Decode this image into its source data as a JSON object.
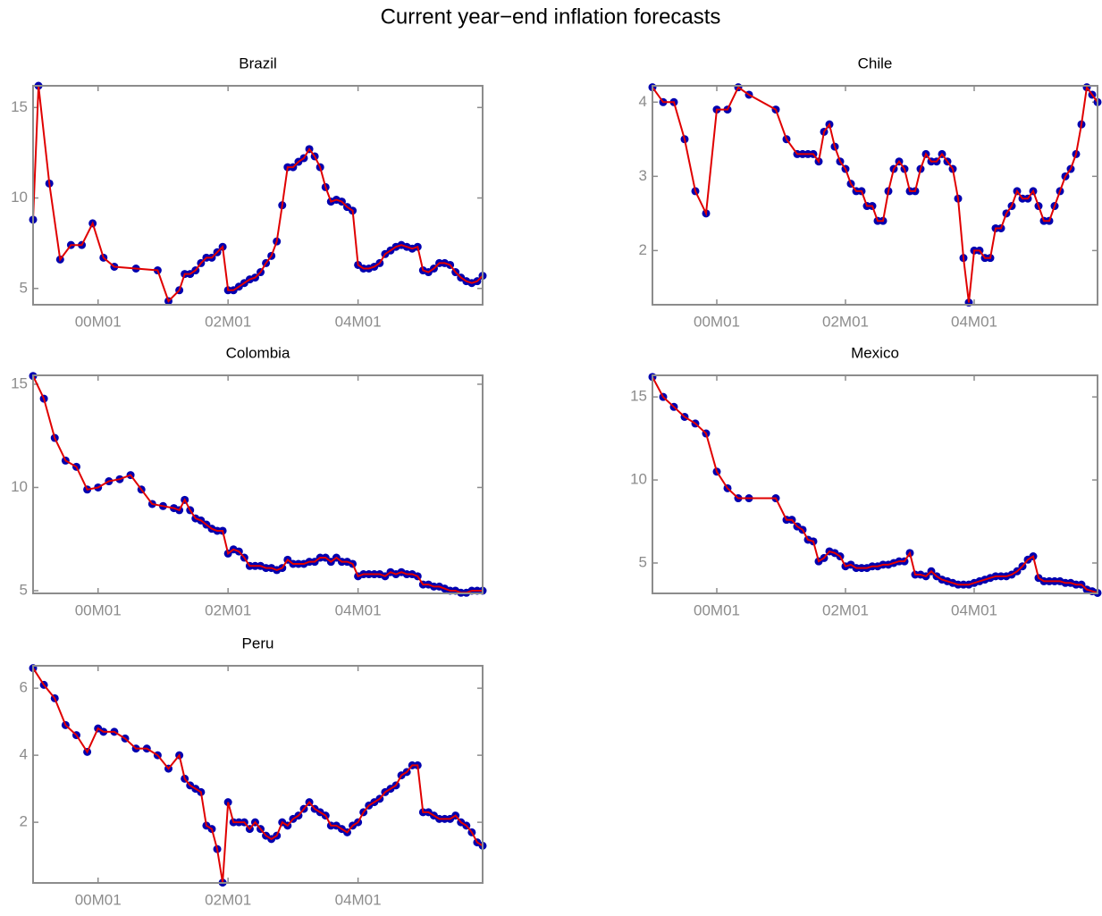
{
  "title": "Current year−end inflation forecasts",
  "chart_data": [
    {
      "type": "line",
      "title": "Brazil",
      "color": "#e00000",
      "marker_color": "#0000b0",
      "x": [
        -12,
        -11,
        -9,
        -7,
        -5,
        -3,
        -1,
        1,
        3,
        7,
        11,
        13,
        15,
        16,
        17,
        18,
        19,
        20,
        21,
        22,
        23,
        24,
        25,
        26,
        27,
        28,
        29,
        30,
        31,
        32,
        33,
        34,
        35,
        36,
        37,
        38,
        39,
        40,
        41,
        42,
        43,
        44,
        45,
        46,
        47,
        48,
        49,
        50,
        51,
        52,
        53,
        54,
        55,
        56,
        57,
        58,
        59,
        60,
        61,
        62,
        63,
        64,
        65,
        66,
        67,
        68,
        69,
        70,
        71
      ],
      "values": [
        8.8,
        16.2,
        10.8,
        6.6,
        7.4,
        7.4,
        8.6,
        6.7,
        6.2,
        6.1,
        6.0,
        4.3,
        4.9,
        5.8,
        5.8,
        6.0,
        6.4,
        6.7,
        6.7,
        7.0,
        7.3,
        4.9,
        4.9,
        5.1,
        5.3,
        5.5,
        5.6,
        5.9,
        6.4,
        6.8,
        7.6,
        9.6,
        11.7,
        11.7,
        12.0,
        12.2,
        12.7,
        12.3,
        11.7,
        10.6,
        9.8,
        9.9,
        9.8,
        9.5,
        9.3,
        6.3,
        6.1,
        6.1,
        6.2,
        6.4,
        6.9,
        7.1,
        7.3,
        7.4,
        7.3,
        7.2,
        7.3,
        6.0,
        5.9,
        6.1,
        6.4,
        6.4,
        6.3,
        5.9,
        5.6,
        5.4,
        5.3,
        5.4,
        5.7
      ],
      "xlim": [
        -12,
        71
      ],
      "xticks": [
        {
          "value": 0,
          "label": "00M01"
        },
        {
          "value": 24,
          "label": "02M01"
        },
        {
          "value": 48,
          "label": "04M01"
        }
      ],
      "ylim": [
        4.1,
        16.2
      ],
      "yticks": [
        5,
        10,
        15
      ]
    },
    {
      "type": "line",
      "title": "Chile",
      "color": "#e00000",
      "marker_color": "#0000b0",
      "x": [
        -12,
        -10,
        -8,
        -6,
        -4,
        -2,
        0,
        2,
        4,
        6,
        11,
        13,
        15,
        16,
        17,
        18,
        19,
        20,
        21,
        22,
        23,
        24,
        25,
        26,
        27,
        28,
        29,
        30,
        31,
        32,
        33,
        34,
        35,
        36,
        37,
        38,
        39,
        40,
        41,
        42,
        43,
        44,
        45,
        46,
        47,
        48,
        49,
        50,
        51,
        52,
        53,
        54,
        55,
        56,
        57,
        58,
        59,
        60,
        61,
        62,
        63,
        64,
        65,
        66,
        67,
        68,
        69,
        70,
        71
      ],
      "values": [
        4.2,
        4.0,
        4.0,
        3.5,
        2.8,
        2.5,
        3.9,
        3.9,
        4.2,
        4.1,
        3.9,
        3.5,
        3.3,
        3.3,
        3.3,
        3.3,
        3.2,
        3.6,
        3.7,
        3.4,
        3.2,
        3.1,
        2.9,
        2.8,
        2.8,
        2.6,
        2.6,
        2.4,
        2.4,
        2.8,
        3.1,
        3.2,
        3.1,
        2.8,
        2.8,
        3.1,
        3.3,
        3.2,
        3.2,
        3.3,
        3.2,
        3.1,
        2.7,
        1.9,
        1.3,
        2.0,
        2.0,
        1.9,
        1.9,
        2.3,
        2.3,
        2.5,
        2.6,
        2.8,
        2.7,
        2.7,
        2.8,
        2.6,
        2.4,
        2.4,
        2.6,
        2.8,
        3.0,
        3.1,
        3.3,
        3.7,
        4.2,
        4.1,
        4.0
      ],
      "xlim": [
        -12,
        71
      ],
      "xticks": [
        {
          "value": 0,
          "label": "00M01"
        },
        {
          "value": 24,
          "label": "02M01"
        },
        {
          "value": 48,
          "label": "04M01"
        }
      ],
      "ylim": [
        1.27,
        4.22
      ],
      "yticks": [
        2,
        3,
        4
      ]
    },
    {
      "type": "line",
      "title": "Colombia",
      "color": "#e00000",
      "marker_color": "#0000b0",
      "x": [
        -12,
        -10,
        -8,
        -6,
        -4,
        -2,
        0,
        2,
        4,
        6,
        8,
        10,
        12,
        14,
        15,
        16,
        17,
        18,
        19,
        20,
        21,
        22,
        23,
        24,
        25,
        26,
        27,
        28,
        29,
        30,
        31,
        32,
        33,
        34,
        35,
        36,
        37,
        38,
        39,
        40,
        41,
        42,
        43,
        44,
        45,
        46,
        47,
        48,
        49,
        50,
        51,
        52,
        53,
        54,
        55,
        56,
        57,
        58,
        59,
        60,
        61,
        62,
        63,
        64,
        65,
        66,
        67,
        68,
        69,
        70,
        71
      ],
      "values": [
        15.4,
        14.3,
        12.4,
        11.3,
        11.0,
        9.9,
        10.0,
        10.3,
        10.4,
        10.6,
        9.9,
        9.2,
        9.1,
        9.0,
        8.9,
        9.4,
        8.9,
        8.5,
        8.4,
        8.2,
        8.0,
        7.9,
        7.9,
        6.8,
        7.0,
        6.9,
        6.6,
        6.2,
        6.2,
        6.2,
        6.1,
        6.1,
        6.0,
        6.1,
        6.5,
        6.3,
        6.3,
        6.3,
        6.4,
        6.4,
        6.6,
        6.6,
        6.4,
        6.6,
        6.4,
        6.4,
        6.3,
        5.7,
        5.8,
        5.8,
        5.8,
        5.8,
        5.7,
        5.9,
        5.8,
        5.9,
        5.8,
        5.8,
        5.7,
        5.3,
        5.3,
        5.2,
        5.2,
        5.1,
        5.0,
        5.0,
        4.9,
        4.9,
        5.0,
        5.0,
        5.0
      ],
      "xlim": [
        -12,
        71
      ],
      "xticks": [
        {
          "value": 0,
          "label": "00M01"
        },
        {
          "value": 24,
          "label": "02M01"
        },
        {
          "value": 48,
          "label": "04M01"
        }
      ],
      "ylim": [
        4.87,
        15.43
      ],
      "yticks": [
        5,
        10,
        15
      ]
    },
    {
      "type": "line",
      "title": "Mexico",
      "color": "#e00000",
      "marker_color": "#0000b0",
      "x": [
        -12,
        -10,
        -8,
        -6,
        -4,
        -2,
        0,
        2,
        4,
        6,
        11,
        13,
        14,
        15,
        16,
        17,
        18,
        19,
        20,
        21,
        22,
        23,
        24,
        25,
        26,
        27,
        28,
        29,
        30,
        31,
        32,
        33,
        34,
        35,
        36,
        37,
        38,
        39,
        40,
        41,
        42,
        43,
        44,
        45,
        46,
        47,
        48,
        49,
        50,
        51,
        52,
        53,
        54,
        55,
        56,
        57,
        58,
        59,
        60,
        61,
        62,
        63,
        64,
        65,
        66,
        67,
        68,
        69,
        70,
        71
      ],
      "values": [
        16.2,
        15.0,
        14.4,
        13.8,
        13.4,
        12.8,
        10.5,
        9.5,
        8.9,
        8.9,
        8.9,
        7.6,
        7.6,
        7.2,
        7.0,
        6.4,
        6.3,
        5.1,
        5.3,
        5.7,
        5.6,
        5.4,
        4.8,
        4.9,
        4.7,
        4.7,
        4.7,
        4.8,
        4.8,
        4.9,
        4.9,
        5.0,
        5.1,
        5.1,
        5.6,
        4.3,
        4.3,
        4.2,
        4.5,
        4.2,
        4.0,
        3.9,
        3.8,
        3.7,
        3.7,
        3.7,
        3.8,
        3.9,
        4.0,
        4.1,
        4.2,
        4.2,
        4.2,
        4.3,
        4.5,
        4.8,
        5.2,
        5.4,
        4.1,
        3.9,
        3.9,
        3.9,
        3.9,
        3.8,
        3.8,
        3.7,
        3.7,
        3.4,
        3.3,
        3.2
      ],
      "xlim": [
        -12,
        71
      ],
      "xticks": [
        {
          "value": 0,
          "label": "00M01"
        },
        {
          "value": 24,
          "label": "02M01"
        },
        {
          "value": 48,
          "label": "04M01"
        }
      ],
      "ylim": [
        3.17,
        16.3
      ],
      "yticks": [
        5,
        10,
        15
      ]
    },
    {
      "type": "line",
      "title": "Peru",
      "color": "#e00000",
      "marker_color": "#0000b0",
      "x": [
        -12,
        -10,
        -8,
        -6,
        -4,
        -2,
        0,
        1,
        3,
        5,
        7,
        9,
        11,
        13,
        15,
        16,
        17,
        18,
        19,
        20,
        21,
        22,
        23,
        24,
        25,
        26,
        27,
        28,
        29,
        30,
        31,
        32,
        33,
        34,
        35,
        36,
        37,
        38,
        39,
        40,
        41,
        42,
        43,
        44,
        45,
        46,
        47,
        48,
        49,
        50,
        51,
        52,
        53,
        54,
        55,
        56,
        57,
        58,
        59,
        60,
        61,
        62,
        63,
        64,
        65,
        66,
        67,
        68,
        69,
        70,
        71
      ],
      "values": [
        6.6,
        6.1,
        5.7,
        4.9,
        4.6,
        4.1,
        4.8,
        4.7,
        4.7,
        4.5,
        4.2,
        4.2,
        4.0,
        3.6,
        4.0,
        3.3,
        3.1,
        3.0,
        2.9,
        1.9,
        1.8,
        1.2,
        0.2,
        2.6,
        2.0,
        2.0,
        2.0,
        1.8,
        2.0,
        1.8,
        1.6,
        1.5,
        1.6,
        2.0,
        1.9,
        2.1,
        2.2,
        2.4,
        2.6,
        2.4,
        2.3,
        2.2,
        1.9,
        1.9,
        1.8,
        1.7,
        1.9,
        2.0,
        2.3,
        2.5,
        2.6,
        2.7,
        2.9,
        3.0,
        3.1,
        3.4,
        3.5,
        3.7,
        3.7,
        2.3,
        2.3,
        2.2,
        2.1,
        2.1,
        2.1,
        2.2,
        2.0,
        1.9,
        1.7,
        1.4,
        1.3
      ],
      "xlim": [
        -12,
        71
      ],
      "xticks": [
        {
          "value": 0,
          "label": "00M01"
        },
        {
          "value": 24,
          "label": "02M01"
        },
        {
          "value": 48,
          "label": "04M01"
        }
      ],
      "ylim": [
        0.19,
        6.67
      ],
      "yticks": [
        2,
        4,
        6
      ]
    }
  ]
}
